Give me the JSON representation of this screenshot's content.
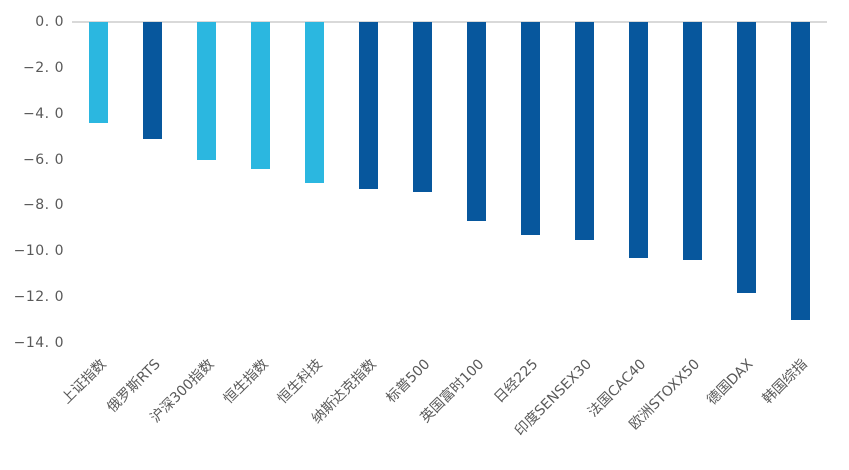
{
  "chart_data": {
    "type": "bar",
    "title": "",
    "categories": [
      "上证指数",
      "俄罗斯RTS",
      "沪深300指数",
      "恒生指数",
      "恒生科技",
      "纳斯达克指数",
      "标普500",
      "英国富时100",
      "日经225",
      "印度SENSEX30",
      "法国CAC40",
      "欧洲STOXX50",
      "德国DAX",
      "韩国综指"
    ],
    "values": [
      -4.4,
      -5.1,
      -6.0,
      -6.4,
      -7.0,
      -7.3,
      -7.4,
      -8.7,
      -9.3,
      -9.5,
      -10.3,
      -10.4,
      -11.8,
      -13.0
    ],
    "colors": [
      "#2BB7E0",
      "#07579D",
      "#2BB7E0",
      "#2BB7E0",
      "#2BB7E0",
      "#07579D",
      "#07579D",
      "#07579D",
      "#07579D",
      "#07579D",
      "#07579D",
      "#07579D",
      "#07579D",
      "#07579D"
    ],
    "palette": {
      "highlight_light_blue": "#2BB7E0",
      "base_dark_blue": "#07579D"
    },
    "xlabel": "",
    "ylabel": "",
    "ylim": [
      -14.0,
      0.0
    ],
    "yticks": [
      0.0,
      -2.0,
      -4.0,
      -6.0,
      -8.0,
      -10.0,
      -12.0,
      -14.0
    ],
    "ytick_labels": [
      "0. 0",
      "−2. 0",
      "−4. 0",
      "−6. 0",
      "−8. 0",
      "−10. 0",
      "−12. 0",
      "−14. 0"
    ],
    "grid": false,
    "legend_position": "none",
    "axis_line_color": "#D9D9D9",
    "tick_label_color": "#595959",
    "background": "#FFFFFF"
  }
}
